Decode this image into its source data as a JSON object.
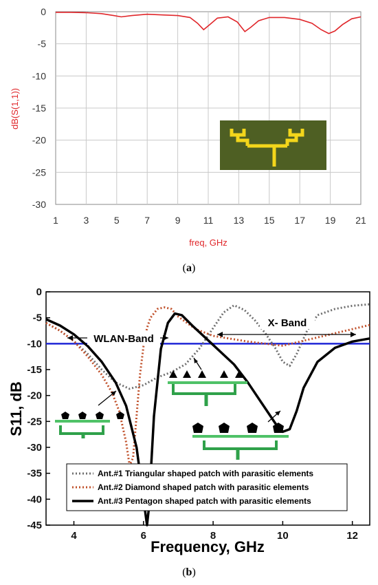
{
  "panel_a": {
    "caption_open": "(",
    "caption_letter": "a",
    "caption_close": ")",
    "inset_colors": {
      "substrate": "#4e5f23",
      "patch": "#f3d61b"
    }
  },
  "panel_b": {
    "caption_open": "(",
    "caption_letter": "b",
    "caption_close": ")",
    "annotations": {
      "wlan": "WLAN-Band",
      "xband": "X- Band"
    },
    "threshold_color": "#1f26d6"
  },
  "chart_data": [
    {
      "type": "line",
      "xlabel": "freq, GHz",
      "ylabel": "dB(S(1,1))",
      "xlim": [
        1,
        21
      ],
      "ylim": [
        -30,
        0
      ],
      "xticks": [
        1,
        3,
        5,
        7,
        9,
        11,
        13,
        15,
        17,
        19,
        21
      ],
      "yticks": [
        0,
        -5,
        -10,
        -15,
        -20,
        -25,
        -30
      ],
      "grid": true,
      "color": "#e0262a",
      "series": [
        {
          "x": [
            1,
            2,
            3,
            4,
            4.8,
            5.3,
            6,
            7,
            8,
            9,
            9.8,
            10.3,
            10.7,
            11.1,
            11.6,
            12.3,
            12.9,
            13.4,
            13.8,
            14.3,
            15,
            16,
            17,
            17.8,
            18.4,
            18.9,
            19.3,
            19.8,
            20.4,
            21
          ],
          "y": [
            -0.1,
            -0.1,
            -0.15,
            -0.3,
            -0.6,
            -0.8,
            -0.6,
            -0.4,
            -0.5,
            -0.6,
            -0.9,
            -1.8,
            -2.8,
            -2.0,
            -1.0,
            -0.8,
            -1.6,
            -3.1,
            -2.4,
            -1.4,
            -0.9,
            -0.9,
            -1.2,
            -1.8,
            -2.8,
            -3.4,
            -3.0,
            -2.0,
            -1.1,
            -0.8
          ]
        }
      ]
    },
    {
      "type": "line",
      "xlabel": "Frequency, GHz",
      "ylabel": "S11, dB",
      "xlim": [
        3.2,
        12.5
      ],
      "ylim": [
        -45,
        0
      ],
      "xticks": [
        4,
        6,
        8,
        10,
        12
      ],
      "yticks": [
        0,
        -5,
        -10,
        -15,
        -20,
        -25,
        -30,
        -35,
        -40,
        -45
      ],
      "legend_position": "bottom-center",
      "series": [
        {
          "name": "Ant.#1 Triangular shaped patch with parasitic elements",
          "color": "#6e6e6e",
          "style": "dotted",
          "x": [
            3.2,
            3.6,
            4.0,
            4.4,
            4.8,
            5.2,
            5.6,
            6.0,
            6.4,
            6.8,
            7.2,
            7.6,
            8.0,
            8.3,
            8.6,
            8.9,
            9.2,
            9.5,
            9.8,
            10.0,
            10.2,
            10.4,
            10.7,
            11.0,
            11.5,
            12.0,
            12.5
          ],
          "y": [
            -6,
            -7.5,
            -9.5,
            -12,
            -15,
            -17.5,
            -18.7,
            -18,
            -16.5,
            -15.5,
            -14,
            -11,
            -7,
            -4,
            -2.6,
            -3.5,
            -5.5,
            -8,
            -11,
            -13.5,
            -14.3,
            -12,
            -7.5,
            -4.5,
            -3.3,
            -2.7,
            -2.4
          ]
        },
        {
          "name": "Ant.#2 Diamond shaped patch with parasitic elements",
          "color": "#c0502a",
          "style": "dotted",
          "x": [
            3.2,
            3.6,
            4.0,
            4.4,
            4.8,
            5.1,
            5.3,
            5.5,
            5.6,
            5.7,
            5.8,
            5.9,
            6.0,
            6.1,
            6.2,
            6.4,
            6.6,
            6.8,
            7.0,
            7.5,
            8.0,
            9.0,
            10.0,
            11.0,
            12.0,
            12.5
          ],
          "y": [
            -6,
            -7.5,
            -9.5,
            -12.5,
            -16,
            -19.5,
            -23,
            -29,
            -33.5,
            -32,
            -24,
            -16,
            -10.5,
            -7,
            -5,
            -3.3,
            -3,
            -3.3,
            -4.8,
            -7.2,
            -8.5,
            -9.6,
            -10.4,
            -8.8,
            -7.2,
            -6.4
          ]
        },
        {
          "name": "Ant.#3 Pentagon shaped patch with parasitic elements",
          "color": "#000000",
          "style": "solid",
          "x": [
            3.2,
            3.6,
            4.0,
            4.4,
            4.8,
            5.2,
            5.5,
            5.8,
            6.0,
            6.1,
            6.15,
            6.3,
            6.5,
            6.7,
            6.9,
            7.1,
            7.4,
            7.8,
            8.2,
            8.6,
            9.0,
            9.4,
            9.8,
            10.0,
            10.2,
            10.4,
            10.6,
            11.0,
            11.5,
            12.0,
            12.5
          ],
          "y": [
            -5.3,
            -6.5,
            -8.2,
            -10.5,
            -13.5,
            -17.5,
            -22,
            -30,
            -40,
            -45,
            -42,
            -24,
            -11,
            -6,
            -4.2,
            -4.5,
            -6.5,
            -9,
            -11.5,
            -14,
            -17.5,
            -21.5,
            -25.5,
            -27,
            -26.5,
            -23,
            -18.5,
            -13.5,
            -10.8,
            -9.6,
            -9
          ]
        }
      ],
      "threshold": -10
    }
  ]
}
